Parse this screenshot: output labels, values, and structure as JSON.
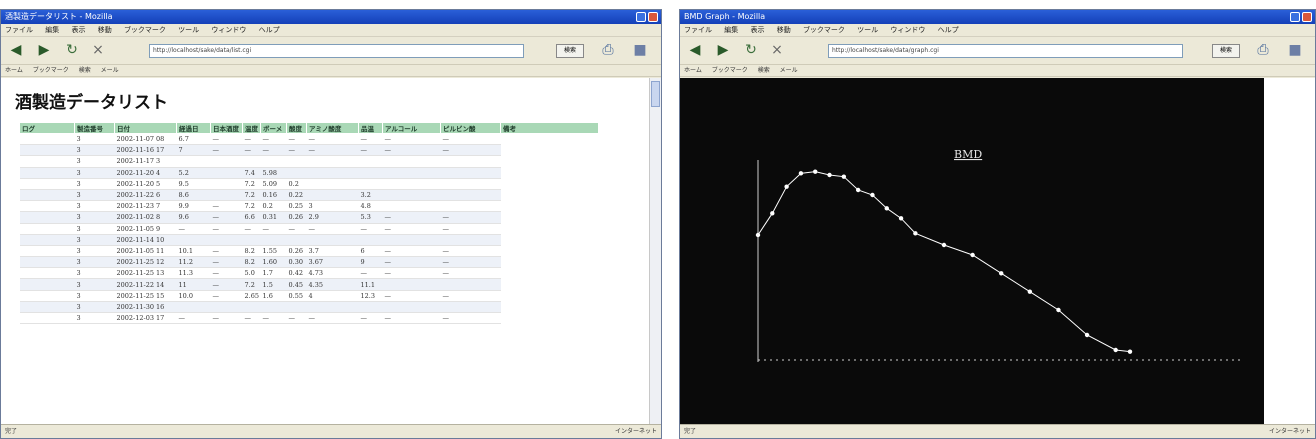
{
  "window1": {
    "title": "酒製造データリスト - Mozilla",
    "menu": [
      "ファイル",
      "編集",
      "表示",
      "移動",
      "ブックマーク",
      "ツール",
      "ウィンドウ",
      "ヘルプ"
    ],
    "address": "http://localhost/sake/data/list.cgi",
    "go_label": "検索",
    "links": [
      "ホーム",
      "ブックマーク",
      "検索",
      "メール"
    ],
    "page_title": "酒製造データリスト",
    "table": {
      "headers": [
        "ログ",
        "製造番号",
        "日付",
        "経過日",
        "日本酒度",
        "温度",
        "ボーメ",
        "酸度",
        "アミノ酸度",
        "品温",
        "アルコール",
        "ピルビン酸",
        "備考"
      ],
      "rows": [
        [
          "",
          "3",
          "2002-11-07 08",
          "6.7",
          "—",
          "—",
          "—",
          "—",
          "—",
          "—",
          "—",
          "—"
        ],
        [
          "",
          "3",
          "2002-11-16 17",
          "7",
          "—",
          "—",
          "—",
          "—",
          "—",
          "—",
          "—",
          "—"
        ],
        [
          "",
          "3",
          "2002-11-17 3",
          "",
          "",
          "",
          "",
          "",
          "",
          "",
          "",
          ""
        ],
        [
          "",
          "3",
          "2002-11-20 4",
          "5.2",
          "",
          "7.4",
          "5.98",
          "",
          "",
          "",
          "",
          ""
        ],
        [
          "",
          "3",
          "2002-11-20 5",
          "9.5",
          "",
          "7.2",
          "5.09",
          "0.2",
          "",
          "",
          "",
          ""
        ],
        [
          "",
          "3",
          "2002-11-22 6",
          "8.6",
          "",
          "7.2",
          "0.16",
          "0.22",
          "",
          "3.2",
          "",
          ""
        ],
        [
          "",
          "3",
          "2002-11-23 7",
          "9.9",
          "—",
          "7.2",
          "0.2",
          "0.25",
          "3",
          "4.8",
          "",
          ""
        ],
        [
          "",
          "3",
          "2002-11-02 8",
          "9.6",
          "—",
          "6.6",
          "0.31",
          "0.26",
          "2.9",
          "5.3",
          "—",
          "—"
        ],
        [
          "",
          "3",
          "2002-11-05 9",
          "—",
          "—",
          "—",
          "—",
          "—",
          "—",
          "—",
          "—",
          "—"
        ],
        [
          "",
          "3",
          "2002-11-14 10",
          "",
          "",
          "",
          "",
          "",
          "",
          "",
          "",
          ""
        ],
        [
          "",
          "3",
          "2002-11-05 11",
          "10.1",
          "—",
          "8.2",
          "1.55",
          "0.26",
          "3.7",
          "6",
          "—",
          "—"
        ],
        [
          "",
          "3",
          "2002-11-25 12",
          "11.2",
          "—",
          "8.2",
          "1.60",
          "0.30",
          "3.67",
          "9",
          "—",
          "—"
        ],
        [
          "",
          "3",
          "2002-11-25 13",
          "11.3",
          "—",
          "5.0",
          "1.7",
          "0.42",
          "4.73",
          "—",
          "—",
          "—"
        ],
        [
          "",
          "3",
          "2002-11-22 14",
          "11",
          "—",
          "7.2",
          "1.5",
          "0.45",
          "4.35",
          "11.1",
          "",
          ""
        ],
        [
          "",
          "3",
          "2002-11-25 15",
          "10.0",
          "—",
          "2.65",
          "1.6",
          "0.55",
          "4",
          "12.3",
          "—",
          "—"
        ],
        [
          "",
          "3",
          "2002-11-30 16",
          "",
          "",
          "",
          "",
          "",
          "",
          "",
          "",
          ""
        ],
        [
          "",
          "3",
          "2002-12-03 17",
          "—",
          "—",
          "—",
          "—",
          "—",
          "—",
          "—",
          "—",
          "—"
        ]
      ]
    },
    "status": "完了",
    "zone": "インターネット"
  },
  "window2": {
    "title": "BMD Graph - Mozilla",
    "menu": [
      "ファイル",
      "編集",
      "表示",
      "移動",
      "ブックマーク",
      "ツール",
      "ウィンドウ",
      "ヘルプ"
    ],
    "address": "http://localhost/sake/data/graph.cgi",
    "go_label": "検索",
    "links": [
      "ホーム",
      "ブックマーク",
      "検索",
      "メール"
    ],
    "status": "完了",
    "zone": "インターネット",
    "chart_data": {
      "type": "line",
      "title": "BMD",
      "xlabel": "",
      "ylabel": "",
      "x": [
        1,
        2,
        3,
        4,
        5,
        6,
        7,
        8,
        9,
        10,
        11,
        12,
        14,
        16,
        18,
        20,
        22,
        24,
        26,
        27
      ],
      "values": [
        17.5,
        18.8,
        20.4,
        21.2,
        21.3,
        21.1,
        21.0,
        20.2,
        19.9,
        19.1,
        18.5,
        17.6,
        16.9,
        16.3,
        15.2,
        14.1,
        13.0,
        11.5,
        10.6,
        10.5
      ],
      "color_line": "#ffffff",
      "background": "#0a0a0a"
    }
  }
}
